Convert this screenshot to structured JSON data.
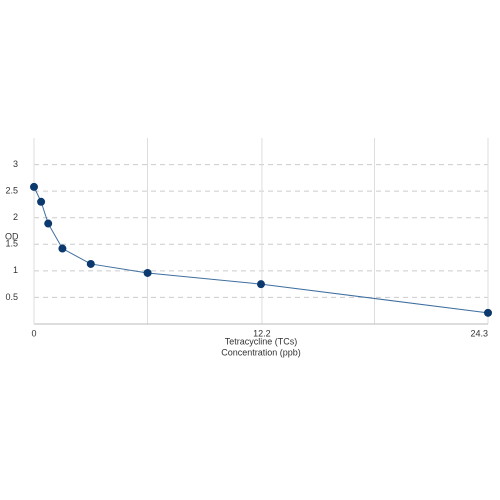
{
  "chart_data": {
    "type": "line",
    "x_label": [
      "Tetracycline (TCs)",
      "Concentration (ppb)"
    ],
    "y_label": "OD",
    "x": [
      0,
      0.38,
      0.76,
      1.52,
      3.04,
      6.08,
      12.15,
      24.3
    ],
    "series": [
      {
        "color": "#0d3a6e",
        "line_color": "#3f6f9f",
        "values": [
          2.58,
          2.3,
          1.89,
          1.42,
          1.13,
          0.96,
          0.75,
          0.21
        ]
      }
    ],
    "xlim": [
      0,
      24.3
    ],
    "xticks": [
      0,
      12.2,
      24.3
    ],
    "xgrid": [
      6.075,
      18.225
    ],
    "ylim": [
      0,
      3.5
    ],
    "yticks": [
      0.5,
      1,
      1.5,
      2,
      2.5,
      3
    ],
    "grid": true
  }
}
